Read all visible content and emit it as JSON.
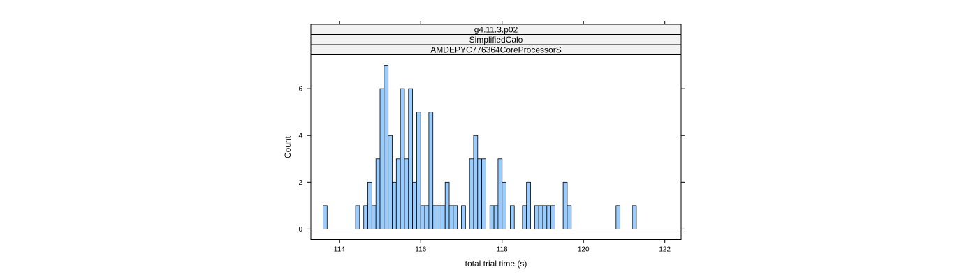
{
  "chart_data": {
    "type": "bar",
    "strips": [
      "g4.11.3.p02",
      "SimplifiedCalo",
      "AMDEPYC776364CoreProcessorS"
    ],
    "xlabel": "total trial time (s)",
    "ylabel": "Count",
    "xlim": [
      113.3,
      122.4
    ],
    "ylim": [
      -0.45,
      7.45
    ],
    "bin_start": 113.3,
    "bin_width": 0.1,
    "x_ticks": [
      114,
      116,
      118,
      120,
      122
    ],
    "y_ticks": [
      0,
      2,
      4,
      6
    ],
    "x": [
      113.3,
      113.4,
      113.5,
      113.6,
      113.7,
      113.8,
      113.9,
      114.0,
      114.1,
      114.2,
      114.3,
      114.4,
      114.5,
      114.6,
      114.7,
      114.8,
      114.9,
      115.0,
      115.1,
      115.2,
      115.3,
      115.4,
      115.5,
      115.6,
      115.7,
      115.8,
      115.9,
      116.0,
      116.1,
      116.2,
      116.3,
      116.4,
      116.5,
      116.6,
      116.7,
      116.8,
      116.9,
      117.0,
      117.1,
      117.2,
      117.3,
      117.4,
      117.5,
      117.6,
      117.7,
      117.8,
      117.9,
      118.0,
      118.1,
      118.2,
      118.3,
      118.4,
      118.5,
      118.6,
      118.7,
      118.8,
      118.9,
      119.0,
      119.1,
      119.2,
      119.3,
      119.4,
      119.5,
      119.6,
      119.7,
      119.8,
      119.9,
      120.0,
      120.1,
      120.2,
      120.3,
      120.4,
      120.5,
      120.6,
      120.7,
      120.8,
      120.9,
      121.0,
      121.1,
      121.2,
      121.3,
      121.4,
      121.5,
      121.6,
      121.7,
      121.8,
      121.9,
      122.0,
      122.1,
      122.2,
      122.3
    ],
    "values": [
      0,
      0,
      0,
      1,
      0,
      0,
      0,
      0,
      0,
      0,
      0,
      1,
      0,
      1,
      2,
      1,
      3,
      6,
      7,
      4,
      2,
      3,
      6,
      3,
      6,
      2,
      5,
      1,
      1,
      5,
      1,
      1,
      1,
      2,
      1,
      1,
      0,
      1,
      0,
      3,
      4,
      3,
      3,
      0,
      1,
      1,
      3,
      2,
      0,
      1,
      0,
      0,
      1,
      2,
      0,
      1,
      1,
      1,
      1,
      1,
      0,
      0,
      2,
      1,
      0,
      0,
      0,
      0,
      0,
      0,
      0,
      0,
      0,
      0,
      0,
      1,
      0,
      0,
      0,
      1,
      0,
      0,
      0,
      0,
      0,
      0,
      0,
      0,
      0,
      0,
      0
    ],
    "bar_color": "#99ccff",
    "outline_color": "#000000",
    "strip_color": "#f2f2f2"
  }
}
